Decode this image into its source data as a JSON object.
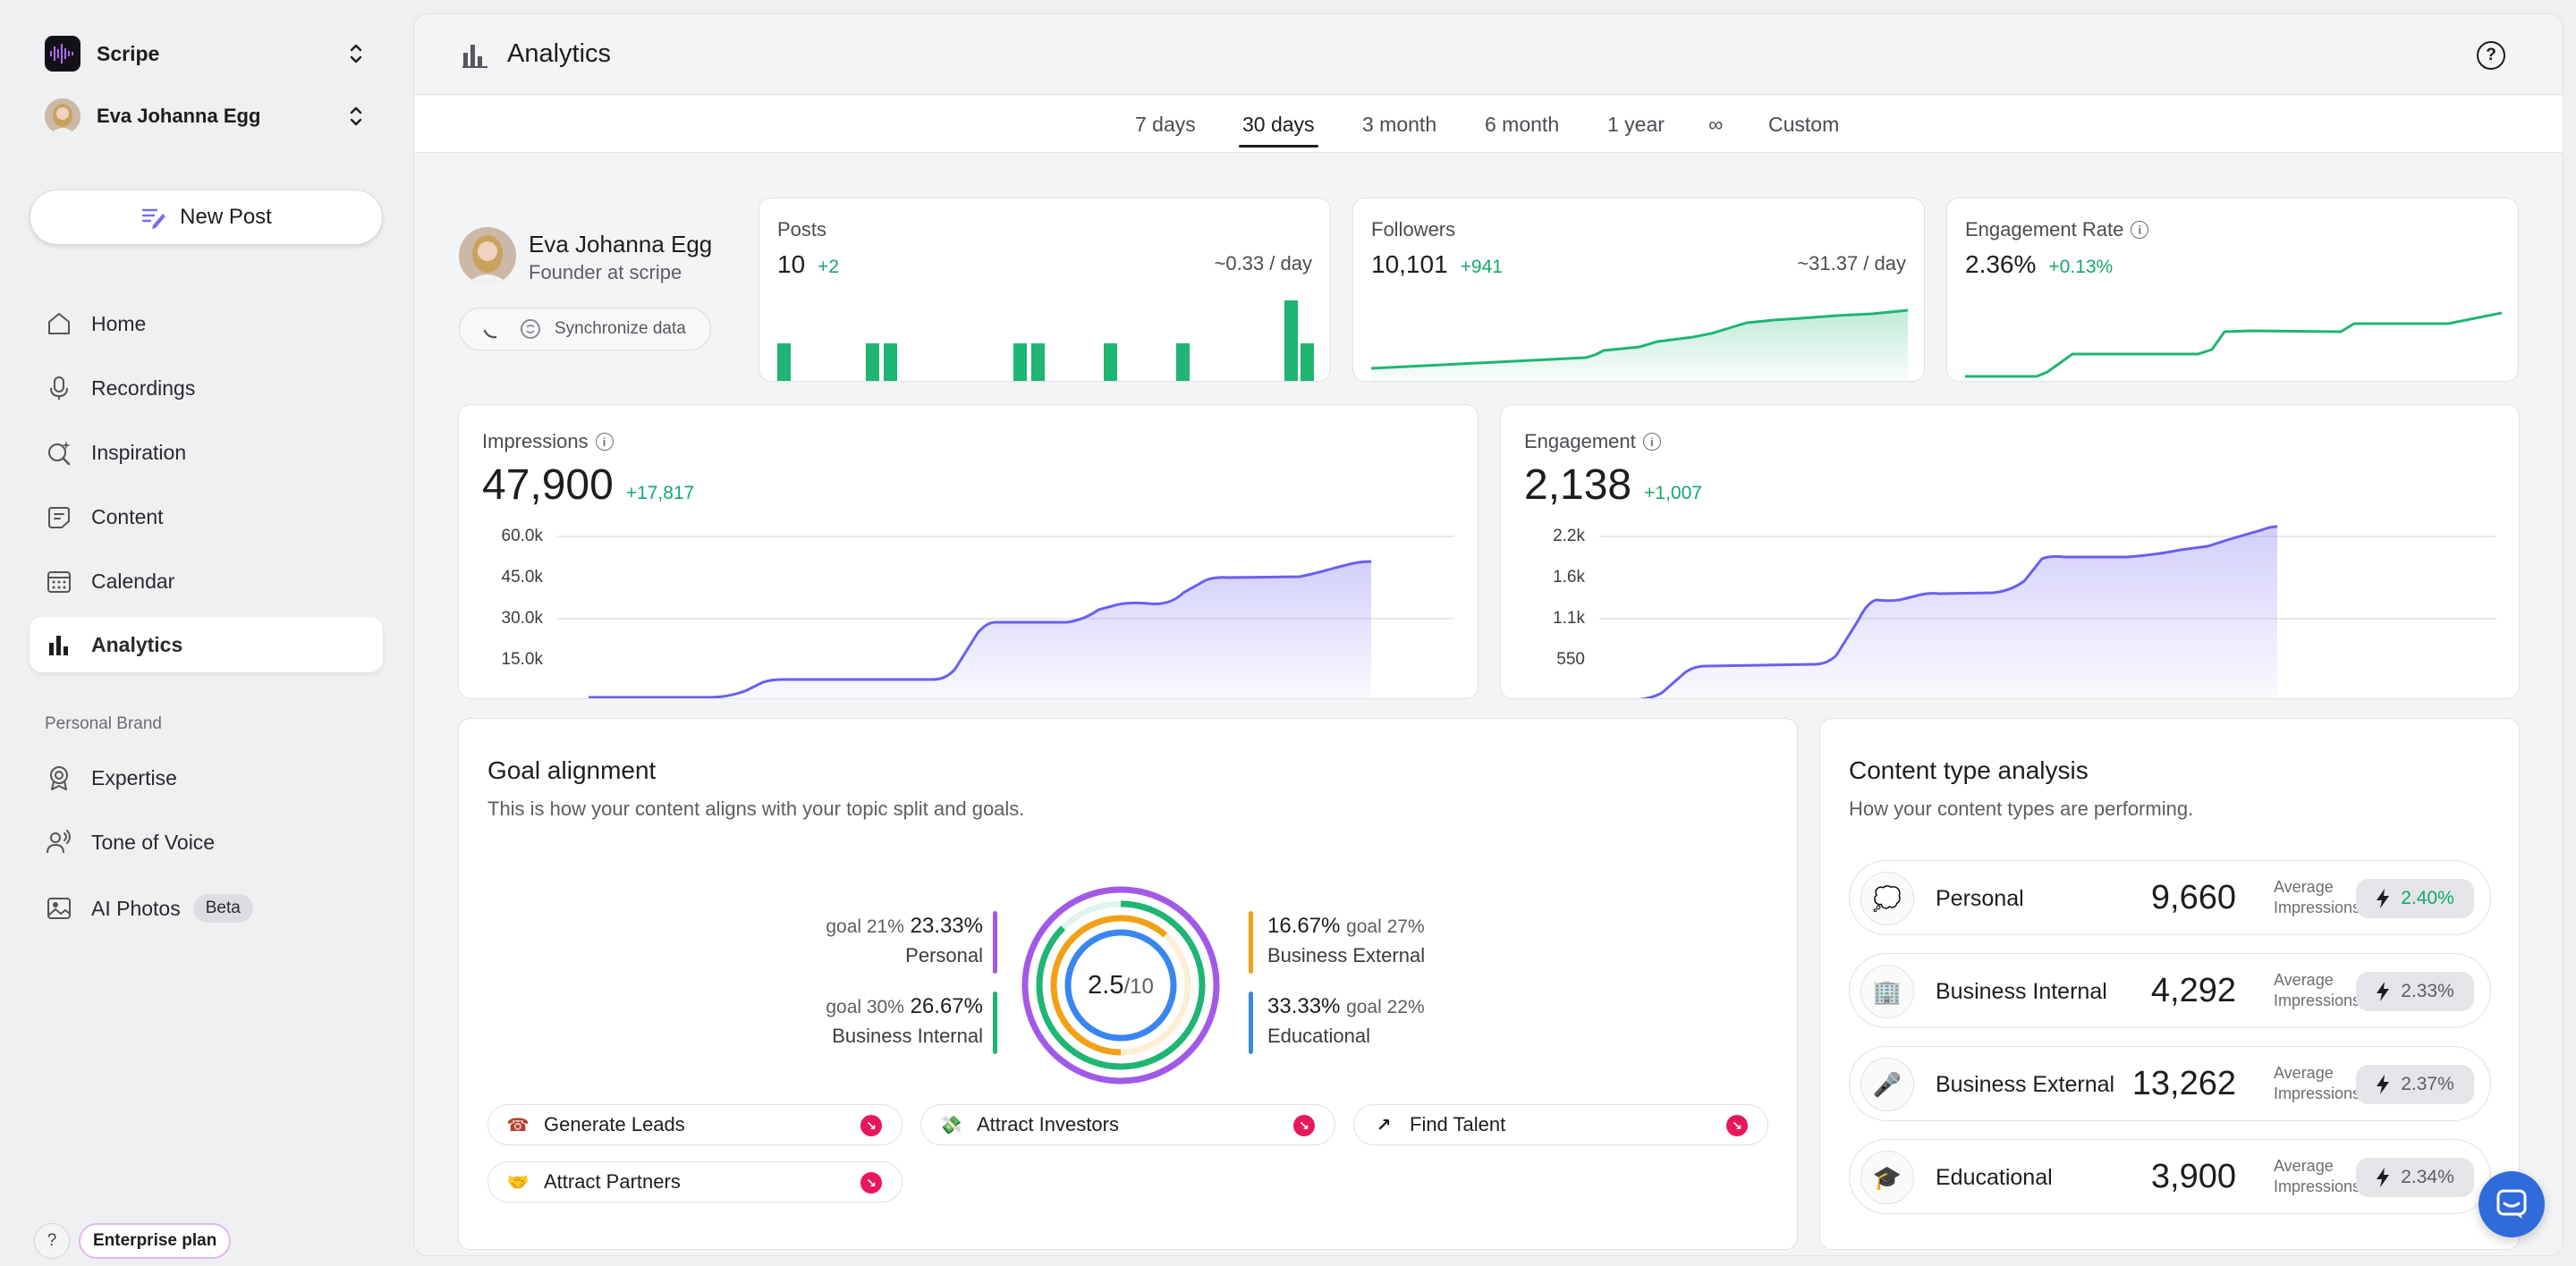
{
  "workspace": {
    "name": "Scripe"
  },
  "user": {
    "name": "Eva Johanna Egg"
  },
  "new_post_label": "New Post",
  "nav": {
    "home": "Home",
    "recordings": "Recordings",
    "inspiration": "Inspiration",
    "content": "Content",
    "calendar": "Calendar",
    "analytics": "Analytics"
  },
  "personal_brand": {
    "section_label": "Personal Brand",
    "expertise": "Expertise",
    "tone_of_voice": "Tone of Voice",
    "ai_photos": "AI Photos",
    "beta_badge": "Beta"
  },
  "footer": {
    "help": "?",
    "plan": "Enterprise plan"
  },
  "header": {
    "title": "Analytics",
    "help": "?"
  },
  "tabs": [
    "7 days",
    "30 days",
    "3 month",
    "6 month",
    "1 year",
    "∞",
    "Custom"
  ],
  "active_tab": "30 days",
  "profile": {
    "name": "Eva Johanna Egg",
    "role": "Founder at scripe",
    "sync_label": "Synchronize data"
  },
  "stats": {
    "posts": {
      "label": "Posts",
      "value": "10",
      "delta": "+2",
      "per_day": "~0.33 / day"
    },
    "followers": {
      "label": "Followers",
      "value": "10,101",
      "delta": "+941",
      "per_day": "~31.37 / day"
    },
    "engagement_rate": {
      "label": "Engagement Rate",
      "value": "2.36%",
      "delta": "+0.13%"
    }
  },
  "impressions": {
    "label": "Impressions",
    "value": "47,900",
    "delta": "+17,817",
    "yticks": [
      "60.0k",
      "45.0k",
      "30.0k",
      "15.0k"
    ]
  },
  "engagement": {
    "label": "Engagement",
    "value": "2,138",
    "delta": "+1,007",
    "yticks": [
      "2.2k",
      "1.6k",
      "1.1k",
      "550"
    ]
  },
  "goal_alignment": {
    "title": "Goal alignment",
    "subtitle": "This is how your content aligns with your topic split and goals.",
    "score": "2.5",
    "score_max": "/10",
    "categories": {
      "personal": {
        "name": "Personal",
        "value": "23.33%",
        "goal": "goal 21%",
        "color": "#a259e8"
      },
      "business_internal": {
        "name": "Business Internal",
        "value": "26.67%",
        "goal": "goal 30%",
        "color": "#1fb573"
      },
      "business_external": {
        "name": "Business External",
        "value": "16.67%",
        "goal": "goal 27%",
        "color": "#f2a116"
      },
      "educational": {
        "name": "Educational",
        "value": "33.33%",
        "goal": "goal 22%",
        "color": "#3a86f0"
      }
    },
    "goals": {
      "generate_leads": {
        "label": "Generate Leads",
        "emoji": "☎"
      },
      "attract_investors": {
        "label": "Attract Investors",
        "emoji": "💸"
      },
      "find_talent": {
        "label": "Find Talent",
        "emoji": "↗"
      },
      "attract_partners": {
        "label": "Attract Partners",
        "emoji": "🤝"
      }
    }
  },
  "content_type": {
    "title": "Content type analysis",
    "subtitle": "How your content types are performing.",
    "avg_label_1": "Average",
    "avg_label_2": "Impressions",
    "rows": [
      {
        "name": "Personal",
        "icon": "💭",
        "value": "9,660",
        "rate": "2.40%"
      },
      {
        "name": "Business Internal",
        "icon": "🏢",
        "value": "4,292",
        "rate": "2.33%"
      },
      {
        "name": "Business External",
        "icon": "🎤",
        "value": "13,262",
        "rate": "2.37%"
      },
      {
        "name": "Educational",
        "icon": "🎓",
        "value": "3,900",
        "rate": "2.34%"
      }
    ]
  },
  "colors": {
    "accent_green": "#12a86b",
    "chart_purple": "#6a5ff0",
    "badge_red": "#e8175d"
  }
}
